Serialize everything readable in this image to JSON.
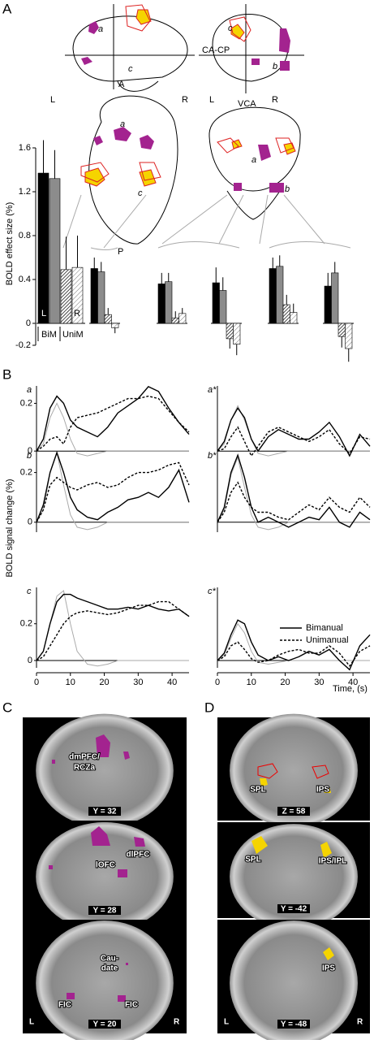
{
  "panel_labels": [
    "A",
    "B",
    "C",
    "D"
  ],
  "schematic": {
    "sagittal": [
      "a",
      "c"
    ],
    "coronal": [
      "c",
      "b",
      "CA-CP",
      "VCA"
    ],
    "axial": [
      "A",
      "L",
      "R",
      "a",
      "c",
      "P"
    ],
    "posterior": [
      "L",
      "R",
      "a",
      "b"
    ]
  },
  "bar_chart": {
    "y_label": "BOLD effect size (%)",
    "ylim": [
      -0.25,
      1.75
    ],
    "yticks": [
      {
        "value": -0.2,
        "label": "-0.2"
      },
      0,
      0.4,
      0.8,
      1.2,
      1.6
    ],
    "colors": [
      "#000000",
      "#8c8c8c",
      "#ffffff",
      "#ffffff"
    ],
    "hatched": [
      false,
      false,
      true,
      true
    ],
    "inner_labels": [
      "L",
      "R",
      "BiM",
      "UniM"
    ],
    "groups": [
      {
        "values": [
          1.37,
          1.32,
          0.49,
          0.51
        ],
        "errors": [
          0.3,
          0.26,
          0.3,
          0.29
        ]
      },
      {
        "values": [
          0.5,
          0.47,
          0.08,
          -0.04
        ],
        "errors": [
          0.1,
          0.09,
          0.06,
          0.05
        ]
      },
      {
        "values": [
          0.36,
          0.38,
          0.05,
          0.09
        ],
        "errors": [
          0.1,
          0.08,
          0.06,
          0.05
        ]
      },
      {
        "values": [
          0.37,
          0.3,
          -0.14,
          -0.19
        ],
        "errors": [
          0.14,
          0.12,
          0.09,
          0.1
        ]
      },
      {
        "values": [
          0.5,
          0.52,
          0.17,
          0.1
        ],
        "errors": [
          0.1,
          0.1,
          0.09,
          0.08
        ]
      },
      {
        "values": [
          0.34,
          0.46,
          -0.12,
          -0.23
        ],
        "errors": [
          0.12,
          0.1,
          0.1,
          0.12
        ]
      }
    ]
  },
  "line_panels": {
    "y_label": "BOLD signal change (%)",
    "x_label": "Time, (s)",
    "xlim": [
      0,
      45
    ],
    "xticks": [
      0,
      10,
      20,
      30,
      40
    ],
    "x": [
      0,
      2,
      4,
      6,
      8,
      10,
      12,
      15,
      18,
      21,
      24,
      27,
      30,
      33,
      36,
      39,
      42,
      45
    ],
    "series_names": [
      "Bimanual",
      "Unimanual"
    ],
    "colors": [
      "#000000",
      "#000000",
      "#aaaaaa"
    ],
    "panels": [
      {
        "label": "a",
        "ylim": [
          -0.03,
          0.29
        ],
        "yticks": [
          0,
          0.2
        ],
        "series": [
          [
            0,
            0.05,
            0.18,
            0.23,
            0.2,
            0.13,
            0.1,
            0.08,
            0.06,
            0.1,
            0.16,
            0.19,
            0.22,
            0.27,
            0.25,
            0.18,
            0.12,
            0.07
          ],
          [
            0,
            0.02,
            0.05,
            0.06,
            0.03,
            0.1,
            0.14,
            0.15,
            0.16,
            0.18,
            0.2,
            0.22,
            0.22,
            0.23,
            0.22,
            0.17,
            0.12,
            0.08
          ],
          [
            0,
            0.03,
            0.14,
            0.2,
            0.14,
            0.05,
            -0.01,
            -0.02,
            -0.01,
            0,
            0,
            0,
            0,
            0,
            0,
            0,
            0,
            0
          ]
        ]
      },
      {
        "label": "a*",
        "ylim": [
          -0.03,
          0.29
        ],
        "yticks": [],
        "series": [
          [
            0,
            0.04,
            0.13,
            0.18,
            0.14,
            0.05,
            0,
            0.06,
            0.09,
            0.07,
            0.05,
            0.05,
            0.08,
            0.12,
            0.06,
            -0.02,
            0.07,
            0.02
          ],
          [
            0,
            0.01,
            0.06,
            0.1,
            0.04,
            -0.02,
            0.02,
            0.08,
            0.1,
            0.08,
            0.06,
            0.04,
            0.06,
            0.09,
            0.03,
            -0.01,
            0.06,
            0.05
          ],
          [
            0,
            0.03,
            0.13,
            0.19,
            0.13,
            0.05,
            -0.01,
            -0.02,
            -0.01,
            0,
            0,
            0,
            0,
            0,
            0,
            0,
            0,
            0
          ]
        ]
      },
      {
        "label": "b",
        "ylim": [
          -0.04,
          0.3
        ],
        "yticks": [
          0,
          0.2
        ],
        "series": [
          [
            0,
            0.07,
            0.2,
            0.28,
            0.2,
            0.1,
            0.05,
            0.02,
            0.01,
            0.04,
            0.06,
            0.09,
            0.1,
            0.12,
            0.1,
            0.14,
            0.21,
            0.08
          ],
          [
            0,
            0.05,
            0.15,
            0.18,
            0.16,
            0.14,
            0.13,
            0.15,
            0.16,
            0.14,
            0.15,
            0.18,
            0.2,
            0.2,
            0.21,
            0.23,
            0.24,
            0.15
          ],
          [
            0,
            0.05,
            0.2,
            0.28,
            0.15,
            0.03,
            -0.02,
            -0.03,
            -0.02,
            0,
            0,
            0,
            0,
            0,
            0,
            0,
            0,
            0
          ]
        ]
      },
      {
        "label": "b*",
        "ylim": [
          -0.04,
          0.3
        ],
        "yticks": [],
        "series": [
          [
            0,
            0.06,
            0.2,
            0.27,
            0.18,
            0.06,
            0,
            0.02,
            0,
            -0.02,
            0,
            0.02,
            0.01,
            0.06,
            0,
            -0.02,
            0.04,
            0.01
          ],
          [
            0,
            0.04,
            0.12,
            0.16,
            0.1,
            0.06,
            0.04,
            0.04,
            0.02,
            0.01,
            0.04,
            0.07,
            0.05,
            0.1,
            0.06,
            0.04,
            0.1,
            0.06
          ],
          [
            0,
            0.05,
            0.19,
            0.26,
            0.14,
            0.03,
            -0.02,
            -0.03,
            -0.02,
            0,
            0,
            0,
            0,
            0,
            0,
            0,
            0,
            0
          ]
        ]
      },
      {
        "label": "c",
        "ylim": [
          -0.04,
          0.42
        ],
        "yticks": [
          0,
          0.2
        ],
        "series": [
          [
            0,
            0.05,
            0.2,
            0.32,
            0.36,
            0.36,
            0.34,
            0.32,
            0.3,
            0.28,
            0.28,
            0.29,
            0.28,
            0.3,
            0.28,
            0.27,
            0.28,
            0.24
          ],
          [
            0,
            0.02,
            0.08,
            0.14,
            0.2,
            0.24,
            0.26,
            0.27,
            0.26,
            0.25,
            0.26,
            0.28,
            0.3,
            0.3,
            0.32,
            0.32,
            0.28,
            0.24
          ],
          [
            0,
            0.05,
            0.2,
            0.35,
            0.38,
            0.2,
            0.05,
            -0.02,
            -0.03,
            -0.02,
            0,
            0,
            0,
            0,
            0,
            0,
            0,
            0
          ]
        ]
      },
      {
        "label": "c*",
        "ylim": [
          -0.04,
          0.42
        ],
        "yticks": [],
        "series": [
          [
            0,
            0.04,
            0.14,
            0.22,
            0.2,
            0.1,
            0.03,
            0,
            0.02,
            0,
            0.02,
            0.05,
            0.03,
            0.06,
            0,
            -0.05,
            0.08,
            0.14
          ],
          [
            0,
            0.02,
            0.08,
            0.1,
            0.06,
            0.01,
            -0.01,
            0,
            0.03,
            0.05,
            0.06,
            0.04,
            0.04,
            0.08,
            0.04,
            -0.03,
            0.05,
            0.08
          ],
          [
            0,
            0.03,
            0.12,
            0.2,
            0.15,
            0.05,
            -0.01,
            -0.02,
            -0.01,
            0,
            0,
            0,
            0,
            0,
            0,
            0,
            0,
            0
          ]
        ]
      }
    ]
  },
  "panel_c": {
    "images": [
      {
        "labels": [
          "dmPFC/",
          "RCZa"
        ],
        "slice": "Y = 32"
      },
      {
        "labels": [
          "dlPFC",
          "lOFC"
        ],
        "slice": "Y = 28"
      },
      {
        "labels": [
          "Cau-",
          "date",
          "FIC",
          "FIC"
        ],
        "slice": "Y = 20"
      }
    ],
    "sides": [
      "L",
      "R"
    ]
  },
  "panel_d": {
    "images": [
      {
        "labels": [
          "SPL",
          "IPS"
        ],
        "slice": "Z = 58"
      },
      {
        "labels": [
          "SPL",
          "IPS/IPL"
        ],
        "slice": "Y = -42"
      },
      {
        "labels": [
          "IPS"
        ],
        "slice": "Y = -48"
      }
    ],
    "sides": [
      "L",
      "R"
    ]
  }
}
